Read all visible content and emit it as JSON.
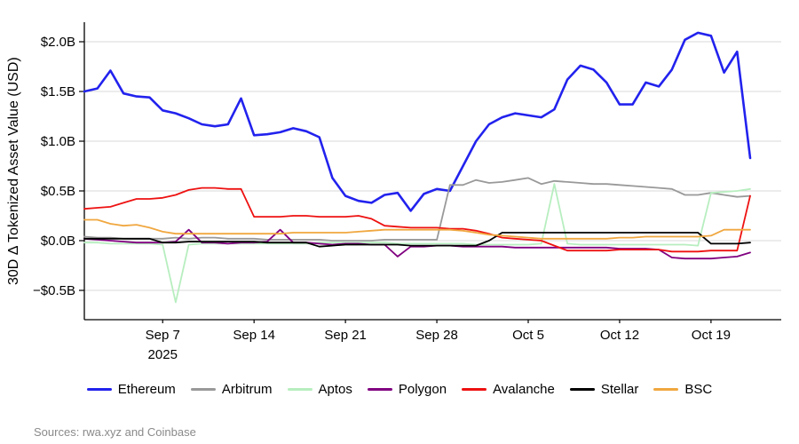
{
  "figure": {
    "ylabel": "30D Δ Tokenized Asset Value (USD)",
    "sources": "Sources: rwa.xyz and Coinbase"
  },
  "chart_data": {
    "type": "line",
    "title": "",
    "ylabel": "30D Δ Tokenized Asset Value (USD)",
    "x_unit": "days",
    "x_range": [
      "Sep 1 2025",
      "Oct 22 2025"
    ],
    "n_points": 52,
    "grid": "horizontal",
    "legend_position": "bottom",
    "ylim": [
      -0.79,
      2.2
    ],
    "y_ticks": [
      {
        "value": 2.0,
        "label": "$2.0B"
      },
      {
        "value": 1.5,
        "label": "$1.5B"
      },
      {
        "value": 1.0,
        "label": "$1.0B"
      },
      {
        "value": 0.5,
        "label": "$0.5B"
      },
      {
        "value": 0.0,
        "label": "$0.0B"
      },
      {
        "value": -0.5,
        "label": "−$0.5B"
      }
    ],
    "x_ticks": [
      {
        "day": 6,
        "label": "Sep 7",
        "sublabel": "2025"
      },
      {
        "day": 13,
        "label": "Sep 14"
      },
      {
        "day": 20,
        "label": "Sep 21"
      },
      {
        "day": 27,
        "label": "Sep 28"
      },
      {
        "day": 34,
        "label": "Oct 5"
      },
      {
        "day": 41,
        "label": "Oct 12"
      },
      {
        "day": 48,
        "label": "Oct 19"
      }
    ],
    "series": [
      {
        "name": "Ethereum",
        "color": "#2222ee",
        "width": 2.6,
        "values": [
          1.5,
          1.53,
          1.71,
          1.48,
          1.45,
          1.44,
          1.31,
          1.28,
          1.23,
          1.17,
          1.15,
          1.17,
          1.43,
          1.06,
          1.07,
          1.09,
          1.13,
          1.1,
          1.04,
          0.63,
          0.45,
          0.4,
          0.38,
          0.46,
          0.48,
          0.3,
          0.47,
          0.52,
          0.5,
          0.75,
          1.0,
          1.17,
          1.24,
          1.28,
          1.26,
          1.24,
          1.32,
          1.62,
          1.76,
          1.72,
          1.59,
          1.37,
          1.37,
          1.59,
          1.55,
          1.72,
          2.02,
          2.09,
          2.06,
          1.69,
          1.9,
          0.83
        ]
      },
      {
        "name": "Arbitrum",
        "color": "#999999",
        "width": 1.8,
        "values": [
          0.04,
          0.03,
          0.03,
          0.02,
          0.02,
          0.02,
          0.02,
          0.03,
          0.02,
          0.03,
          0.03,
          0.02,
          0.02,
          0.02,
          0.01,
          0.01,
          0.01,
          0.01,
          0.01,
          0.0,
          0.0,
          0.0,
          0.0,
          0.01,
          0.01,
          0.01,
          0.01,
          0.01,
          0.56,
          0.56,
          0.61,
          0.58,
          0.59,
          0.61,
          0.63,
          0.57,
          0.6,
          0.59,
          0.58,
          0.57,
          0.57,
          0.56,
          0.55,
          0.54,
          0.53,
          0.52,
          0.46,
          0.46,
          0.48,
          0.46,
          0.44,
          0.45
        ]
      },
      {
        "name": "Aptos",
        "color": "#b7eebf",
        "width": 1.8,
        "values": [
          -0.02,
          -0.02,
          -0.03,
          -0.03,
          -0.03,
          -0.03,
          -0.04,
          -0.62,
          -0.04,
          -0.03,
          -0.03,
          -0.03,
          -0.03,
          -0.03,
          -0.03,
          -0.03,
          -0.03,
          -0.03,
          -0.02,
          -0.02,
          -0.02,
          -0.02,
          -0.02,
          -0.02,
          -0.03,
          -0.03,
          -0.03,
          -0.03,
          -0.03,
          -0.03,
          -0.04,
          -0.04,
          -0.04,
          -0.04,
          -0.04,
          -0.03,
          0.57,
          -0.03,
          -0.04,
          -0.04,
          -0.04,
          -0.04,
          -0.04,
          -0.04,
          -0.04,
          -0.04,
          -0.04,
          -0.05,
          0.48,
          0.49,
          0.5,
          0.52
        ]
      },
      {
        "name": "Polygon",
        "color": "#800080",
        "width": 1.8,
        "values": [
          0.02,
          0.01,
          0.0,
          -0.01,
          -0.02,
          -0.02,
          -0.02,
          -0.01,
          0.11,
          -0.02,
          -0.02,
          -0.03,
          -0.02,
          -0.02,
          -0.01,
          0.11,
          -0.02,
          -0.02,
          -0.03,
          -0.04,
          -0.03,
          -0.03,
          -0.04,
          -0.04,
          -0.16,
          -0.06,
          -0.06,
          -0.05,
          -0.05,
          -0.06,
          -0.06,
          -0.06,
          -0.06,
          -0.07,
          -0.07,
          -0.07,
          -0.07,
          -0.07,
          -0.07,
          -0.07,
          -0.07,
          -0.08,
          -0.08,
          -0.08,
          -0.09,
          -0.17,
          -0.18,
          -0.18,
          -0.18,
          -0.17,
          -0.16,
          -0.12
        ]
      },
      {
        "name": "Avalanche",
        "color": "#ee1111",
        "width": 1.8,
        "values": [
          0.32,
          0.33,
          0.34,
          0.38,
          0.42,
          0.42,
          0.43,
          0.46,
          0.51,
          0.53,
          0.53,
          0.52,
          0.52,
          0.24,
          0.24,
          0.24,
          0.25,
          0.25,
          0.24,
          0.24,
          0.24,
          0.25,
          0.22,
          0.15,
          0.14,
          0.13,
          0.13,
          0.13,
          0.12,
          0.12,
          0.1,
          0.07,
          0.03,
          0.02,
          0.01,
          0.0,
          -0.05,
          -0.1,
          -0.1,
          -0.1,
          -0.1,
          -0.09,
          -0.09,
          -0.09,
          -0.09,
          -0.11,
          -0.11,
          -0.11,
          -0.1,
          -0.1,
          -0.1,
          0.45
        ]
      },
      {
        "name": "Stellar",
        "color": "#000000",
        "width": 1.8,
        "values": [
          0.02,
          0.02,
          0.02,
          0.02,
          0.02,
          0.02,
          -0.02,
          -0.02,
          -0.01,
          -0.01,
          -0.01,
          -0.01,
          -0.01,
          -0.01,
          -0.02,
          -0.02,
          -0.02,
          -0.02,
          -0.06,
          -0.05,
          -0.04,
          -0.04,
          -0.04,
          -0.04,
          -0.04,
          -0.05,
          -0.05,
          -0.05,
          -0.05,
          -0.05,
          -0.05,
          0.0,
          0.08,
          0.08,
          0.08,
          0.08,
          0.08,
          0.08,
          0.08,
          0.08,
          0.08,
          0.08,
          0.08,
          0.08,
          0.08,
          0.08,
          0.08,
          0.08,
          -0.03,
          -0.03,
          -0.03,
          -0.02
        ]
      },
      {
        "name": "BSC",
        "color": "#f0a73f",
        "width": 1.8,
        "values": [
          0.21,
          0.21,
          0.17,
          0.15,
          0.16,
          0.13,
          0.09,
          0.07,
          0.07,
          0.07,
          0.07,
          0.07,
          0.07,
          0.07,
          0.07,
          0.07,
          0.08,
          0.08,
          0.08,
          0.08,
          0.08,
          0.09,
          0.1,
          0.11,
          0.11,
          0.11,
          0.11,
          0.11,
          0.11,
          0.1,
          0.08,
          0.06,
          0.05,
          0.04,
          0.03,
          0.02,
          0.02,
          0.02,
          0.02,
          0.02,
          0.02,
          0.03,
          0.03,
          0.04,
          0.04,
          0.04,
          0.04,
          0.04,
          0.05,
          0.11,
          0.11,
          0.11
        ]
      }
    ]
  }
}
